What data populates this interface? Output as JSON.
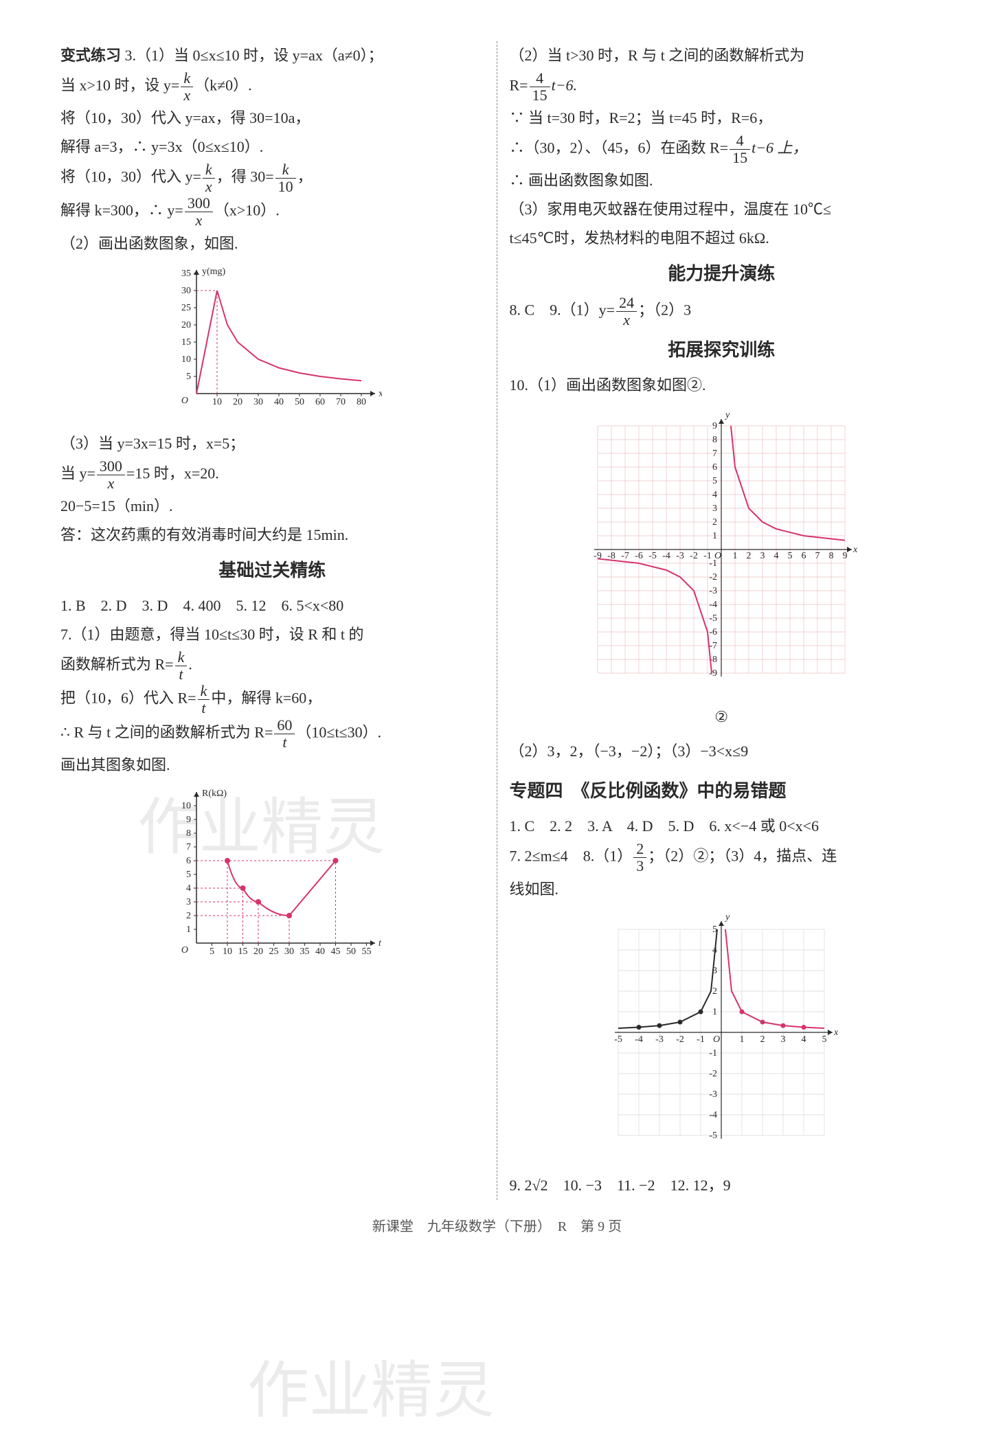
{
  "left": {
    "p1_prefix": "变式练习",
    "p1": " 3.（1）当 0≤x≤10 时，设 y=ax（a≠0）；",
    "p2a": "当 x>10 时，设 y=",
    "p2b": "（k≠0）.",
    "p3": "将（10，30）代入 y=ax，得 30=10a，",
    "p4": "解得 a=3，∴ y=3x（0≤x≤10）.",
    "p5a": "将（10，30）代入 y=",
    "p5b": "，得 30=",
    "p5c": "，",
    "p6a": "解得 k=300，∴ y=",
    "p6b": "（x>10）.",
    "p7": "（2）画出函数图象，如图.",
    "p8": "（3）当 y=3x=15 时，x=5；",
    "p9a": "当 y=",
    "p9b": "=15 时，x=20.",
    "p10": "20−5=15（min）.",
    "p11": "答：这次药熏的有效消毒时间大约是 15min.",
    "h1": "基础过关精练",
    "p12": "1. B　2. D　3. D　4. 400　5. 12　6. 5<x<80",
    "p13": "7.（1）由题意，得当 10≤t≤30 时，设 R 和 t 的",
    "p14a": "函数解析式为 R=",
    "p14b": ".",
    "p15a": "把（10，6）代入 R=",
    "p15b": "中，解得 k=60，",
    "p16a": "∴ R 与 t 之间的函数解析式为 R=",
    "p16b": "（10≤t≤30）.",
    "p17": "画出其图象如图.",
    "fracs": {
      "k_x": {
        "num": "k",
        "den": "x"
      },
      "k_10": {
        "num": "k",
        "den": "10"
      },
      "300_x": {
        "num": "300",
        "den": "x"
      },
      "k_t": {
        "num": "k",
        "den": "t"
      },
      "60_t": {
        "num": "60",
        "den": "t"
      }
    },
    "chart1": {
      "type": "line",
      "ylabel": "y(mg)",
      "xlabel": "x(min)",
      "yticks": [
        5,
        10,
        15,
        20,
        25,
        30,
        35
      ],
      "xticks": [
        10,
        20,
        30,
        40,
        50,
        60,
        70,
        80
      ],
      "line_color": "#d6336c",
      "axis_color": "#2a2a2a",
      "dash_color": "#d6336c",
      "peak": [
        10,
        30
      ],
      "curve": [
        [
          0,
          0
        ],
        [
          10,
          30
        ],
        [
          15,
          20
        ],
        [
          20,
          15
        ],
        [
          30,
          10
        ],
        [
          40,
          7.5
        ],
        [
          50,
          6
        ],
        [
          60,
          5
        ],
        [
          70,
          4.3
        ],
        [
          80,
          3.75
        ]
      ]
    },
    "chart2": {
      "type": "line",
      "ylabel": "R(kΩ)",
      "xlabel": "t",
      "yticks": [
        1,
        2,
        3,
        4,
        5,
        6,
        7,
        8,
        9,
        10
      ],
      "xticks": [
        5,
        10,
        15,
        20,
        25,
        30,
        35,
        40,
        45,
        50,
        55
      ],
      "line_color": "#d6336c",
      "axis_color": "#2a2a2a",
      "dash_color": "#d6336c",
      "points": [
        [
          10,
          6
        ],
        [
          15,
          4
        ],
        [
          20,
          3
        ],
        [
          30,
          2
        ],
        [
          45,
          6
        ]
      ],
      "segments": [
        [
          [
            10,
            6
          ],
          [
            15,
            4
          ],
          [
            20,
            3
          ],
          [
            30,
            2
          ]
        ],
        [
          [
            30,
            2
          ],
          [
            45,
            6
          ]
        ]
      ]
    }
  },
  "right": {
    "p1": "（2）当 t>30 时，R 与 t 之间的函数解析式为",
    "p2a": "R=",
    "p2b": "t−6.",
    "p3": "∵ 当 t=30 时，R=2；当 t=45 时，R=6，",
    "p4a": "∴（30，2）、（45，6）在函数 R=",
    "p4b": "t−6 上，",
    "p5": "∴ 画出函数图象如图.",
    "p6": "（3）家用电灭蚊器在使用过程中，温度在 10℃≤",
    "p7": "t≤45℃时，发热材料的电阻不超过 6kΩ.",
    "h2": "能力提升演练",
    "p8a": "8. C　9.（1）y=",
    "p8b": "；（2）3",
    "h3": "拓展探究训练",
    "p9": "10.（1）画出函数图象如图②.",
    "p10": "（2）3，2，（−3，−2）；（3）−3<x≤9",
    "topic": "专题四　《反比例函数》中的易错题",
    "p11": "1. C　2. 2　3. A　4. D　5. D　6. x<−4 或 0<x<6",
    "p12a": "7. 2≤m≤4　8.（1）",
    "p12b": "；（2）②；（3）4，描点、连",
    "p13": "线如图.",
    "p14": "9. 2√2　10. −3　11. −2　12. 12，9",
    "caption2": "②",
    "fracs": {
      "4_15": {
        "num": "4",
        "den": "15"
      },
      "24_x": {
        "num": "24",
        "den": "x"
      },
      "2_3": {
        "num": "2",
        "den": "3"
      }
    },
    "chart3": {
      "type": "hyperbola-grid",
      "range": 9,
      "grid_color": "#eec0c5",
      "axis_color": "#2a2a2a",
      "curve_color": "#d6336c",
      "curves": [
        [
          [
            0.7,
            9
          ],
          [
            1,
            6
          ],
          [
            2,
            3
          ],
          [
            3,
            2
          ],
          [
            4,
            1.5
          ],
          [
            6,
            1
          ],
          [
            9,
            0.67
          ]
        ],
        [
          [
            -0.7,
            -9
          ],
          [
            -1,
            -6
          ],
          [
            -2,
            -3
          ],
          [
            -3,
            -2
          ],
          [
            -4,
            -1.5
          ],
          [
            -6,
            -1
          ],
          [
            -9,
            -0.67
          ]
        ]
      ]
    },
    "chart4": {
      "type": "mixed-grid",
      "range": 5,
      "grid_color": "#d8d8d8",
      "axis_color": "#2a2a2a",
      "curve1_color": "#2a2a2a",
      "curve2_color": "#d6336c",
      "curve1": [
        [
          -5,
          0.2
        ],
        [
          -4,
          0.25
        ],
        [
          -3,
          0.33
        ],
        [
          -2,
          0.5
        ],
        [
          -1,
          1
        ],
        [
          -0.5,
          2
        ],
        [
          -0.2,
          5
        ]
      ],
      "points1": [
        [
          -4,
          0.25
        ],
        [
          -3,
          0.33
        ],
        [
          -2,
          0.5
        ],
        [
          -1,
          1
        ]
      ],
      "curve2": [
        [
          0.2,
          5
        ],
        [
          0.5,
          2
        ],
        [
          1,
          1
        ],
        [
          2,
          0.5
        ],
        [
          3,
          0.33
        ],
        [
          4,
          0.25
        ],
        [
          5,
          0.2
        ]
      ],
      "points2": [
        [
          1,
          1
        ],
        [
          2,
          0.5
        ],
        [
          3,
          0.33
        ],
        [
          4,
          0.25
        ]
      ]
    }
  },
  "footer": "新课堂　九年级数学（下册）　R　第 9 页",
  "watermarks": [
    "作业精灵",
    "作业精灵"
  ]
}
